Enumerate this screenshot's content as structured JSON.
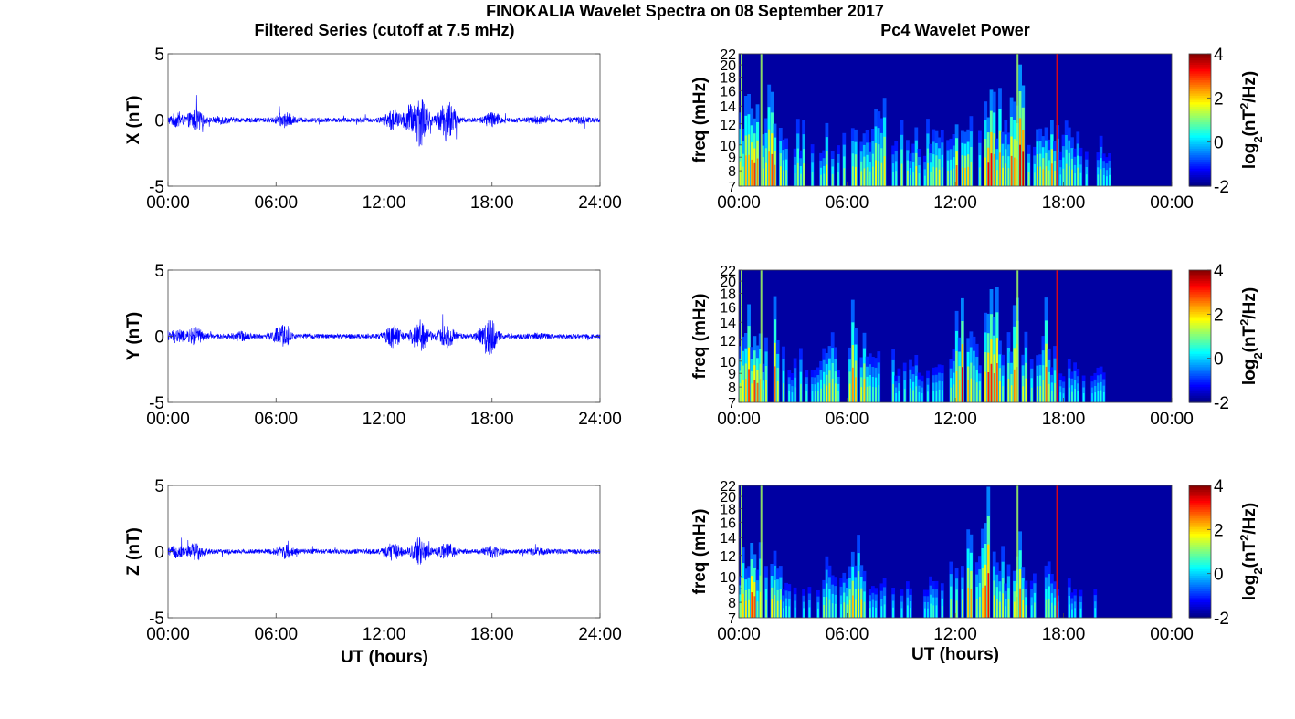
{
  "figure": {
    "title": "FINOKALIA Wavelet Spectra on 08 September 2017",
    "left_title": "Filtered Series (cutoff at 7.5 mHz)",
    "right_title": "Pc4 Wavelet Power",
    "xlabel": "UT (hours)"
  },
  "chart_data": [
    {
      "type": "line",
      "panel": "X",
      "ylabel": "X (nT)",
      "ylim": [
        -5,
        5
      ],
      "yticks": [
        "5",
        "0",
        "-5"
      ],
      "xlim": [
        0,
        24
      ],
      "xticks": [
        "00:00",
        "06:00",
        "12:00",
        "18:00",
        "24:00"
      ],
      "series_color": "#0000ff",
      "activity": [
        {
          "x": 0.5,
          "amp": 0.7
        },
        {
          "x": 1.5,
          "amp": 1.2
        },
        {
          "x": 3,
          "amp": 0.3
        },
        {
          "x": 6.5,
          "amp": 0.8
        },
        {
          "x": 12.5,
          "amp": 1.2
        },
        {
          "x": 13.5,
          "amp": 2.0
        },
        {
          "x": 14,
          "amp": 3.4
        },
        {
          "x": 15.5,
          "amp": 2.8
        },
        {
          "x": 18,
          "amp": 0.9
        },
        {
          "x": 20.5,
          "amp": 0.3
        },
        {
          "x": 23,
          "amp": 0.2
        }
      ]
    },
    {
      "type": "line",
      "panel": "Y",
      "ylabel": "Y (nT)",
      "ylim": [
        -5,
        5
      ],
      "yticks": [
        "5",
        "0",
        "-5"
      ],
      "xlim": [
        0,
        24
      ],
      "xticks": [
        "00:00",
        "06:00",
        "12:00",
        "18:00",
        "24:00"
      ],
      "series_color": "#0000ff",
      "activity": [
        {
          "x": 0.5,
          "amp": 0.8
        },
        {
          "x": 1.5,
          "amp": 1.0
        },
        {
          "x": 4,
          "amp": 0.4
        },
        {
          "x": 6.3,
          "amp": 1.3
        },
        {
          "x": 12.5,
          "amp": 1.3
        },
        {
          "x": 14,
          "amp": 2.0
        },
        {
          "x": 15.5,
          "amp": 1.3
        },
        {
          "x": 17.8,
          "amp": 2.4
        },
        {
          "x": 20.5,
          "amp": 0.2
        }
      ]
    },
    {
      "type": "line",
      "panel": "Z",
      "ylabel": "Z (nT)",
      "ylim": [
        -5,
        5
      ],
      "yticks": [
        "5",
        "0",
        "-5"
      ],
      "xlim": [
        0,
        24
      ],
      "xticks": [
        "00:00",
        "06:00",
        "12:00",
        "18:00",
        "24:00"
      ],
      "series_color": "#0000ff",
      "activity": [
        {
          "x": 0.5,
          "amp": 0.6
        },
        {
          "x": 1.5,
          "amp": 1.0
        },
        {
          "x": 6.5,
          "amp": 0.7
        },
        {
          "x": 12.5,
          "amp": 1.0
        },
        {
          "x": 14,
          "amp": 1.8
        },
        {
          "x": 15.5,
          "amp": 1.0
        },
        {
          "x": 18,
          "amp": 0.6
        },
        {
          "x": 20.5,
          "amp": 0.2
        }
      ]
    },
    {
      "type": "heatmap",
      "panel": "X",
      "ylabel": "freq (mHz)",
      "yticks": [
        "22",
        "20",
        "18",
        "16",
        "14",
        "12",
        "10",
        "9",
        "8",
        "7"
      ],
      "xticks": [
        "00:00",
        "06:00",
        "12:00",
        "18:00",
        "00:00"
      ],
      "xlim": [
        0,
        24
      ],
      "ylim": [
        7,
        22
      ],
      "colorbar": {
        "label": "log2(nT2/Hz)",
        "ticks": [
          "4",
          "2",
          "0",
          "-2"
        ],
        "range": [
          -2,
          4
        ],
        "colormap": "jet"
      },
      "activity": [
        {
          "x": 0.7,
          "p": 3.5
        },
        {
          "x": 2,
          "p": 3.0
        },
        {
          "x": 3.5,
          "p": 1.5
        },
        {
          "x": 5,
          "p": 2.0
        },
        {
          "x": 6.5,
          "p": 2.5
        },
        {
          "x": 8,
          "p": 2.5
        },
        {
          "x": 9.5,
          "p": 2.0
        },
        {
          "x": 11,
          "p": 2.5
        },
        {
          "x": 12.5,
          "p": 3.5
        },
        {
          "x": 14,
          "p": 3.8
        },
        {
          "x": 15.5,
          "p": 3.8
        },
        {
          "x": 17,
          "p": 3.0
        },
        {
          "x": 18.5,
          "p": 1.5
        },
        {
          "x": 20,
          "p": 1.0
        }
      ]
    },
    {
      "type": "heatmap",
      "panel": "Y",
      "ylabel": "freq (mHz)",
      "yticks": [
        "22",
        "20",
        "18",
        "16",
        "14",
        "12",
        "10",
        "9",
        "8",
        "7"
      ],
      "xticks": [
        "00:00",
        "06:00",
        "12:00",
        "18:00",
        "00:00"
      ],
      "xlim": [
        0,
        24
      ],
      "ylim": [
        7,
        22
      ],
      "colorbar": {
        "label": "log2(nT2/Hz)",
        "ticks": [
          "4",
          "2",
          "0",
          "-2"
        ],
        "range": [
          -2,
          4
        ],
        "colormap": "jet"
      },
      "activity": [
        {
          "x": 0.7,
          "p": 3.3
        },
        {
          "x": 2,
          "p": 2.5
        },
        {
          "x": 3.5,
          "p": 1.0
        },
        {
          "x": 5,
          "p": 2.0
        },
        {
          "x": 6.5,
          "p": 3.0
        },
        {
          "x": 8,
          "p": 2.0
        },
        {
          "x": 9.5,
          "p": 1.0
        },
        {
          "x": 11,
          "p": 1.0
        },
        {
          "x": 12.5,
          "p": 3.3
        },
        {
          "x": 14,
          "p": 3.6
        },
        {
          "x": 15.5,
          "p": 3.0
        },
        {
          "x": 17,
          "p": 2.5
        },
        {
          "x": 18.5,
          "p": 0.8
        },
        {
          "x": 20,
          "p": 0.6
        }
      ]
    },
    {
      "type": "heatmap",
      "panel": "Z",
      "ylabel": "freq (mHz)",
      "yticks": [
        "22",
        "20",
        "18",
        "16",
        "14",
        "12",
        "10",
        "9",
        "8",
        "7"
      ],
      "xticks": [
        "00:00",
        "06:00",
        "12:00",
        "18:00",
        "00:00"
      ],
      "xlim": [
        0,
        24
      ],
      "ylim": [
        7,
        22
      ],
      "colorbar": {
        "label": "log2(nT2/Hz)",
        "ticks": [
          "4",
          "2",
          "0",
          "-2"
        ],
        "range": [
          -2,
          4
        ],
        "colormap": "jet"
      },
      "activity": [
        {
          "x": 0.7,
          "p": 3.0
        },
        {
          "x": 2,
          "p": 2.0
        },
        {
          "x": 3.5,
          "p": 0.8
        },
        {
          "x": 5,
          "p": 1.5
        },
        {
          "x": 6.5,
          "p": 2.8
        },
        {
          "x": 8,
          "p": 1.0
        },
        {
          "x": 9.5,
          "p": 0.6
        },
        {
          "x": 11,
          "p": 1.0
        },
        {
          "x": 12.5,
          "p": 3.0
        },
        {
          "x": 14,
          "p": 3.3
        },
        {
          "x": 15.5,
          "p": 2.8
        },
        {
          "x": 17,
          "p": 2.0
        },
        {
          "x": 18.5,
          "p": 0.6
        },
        {
          "x": 20,
          "p": 0.5
        }
      ]
    }
  ]
}
